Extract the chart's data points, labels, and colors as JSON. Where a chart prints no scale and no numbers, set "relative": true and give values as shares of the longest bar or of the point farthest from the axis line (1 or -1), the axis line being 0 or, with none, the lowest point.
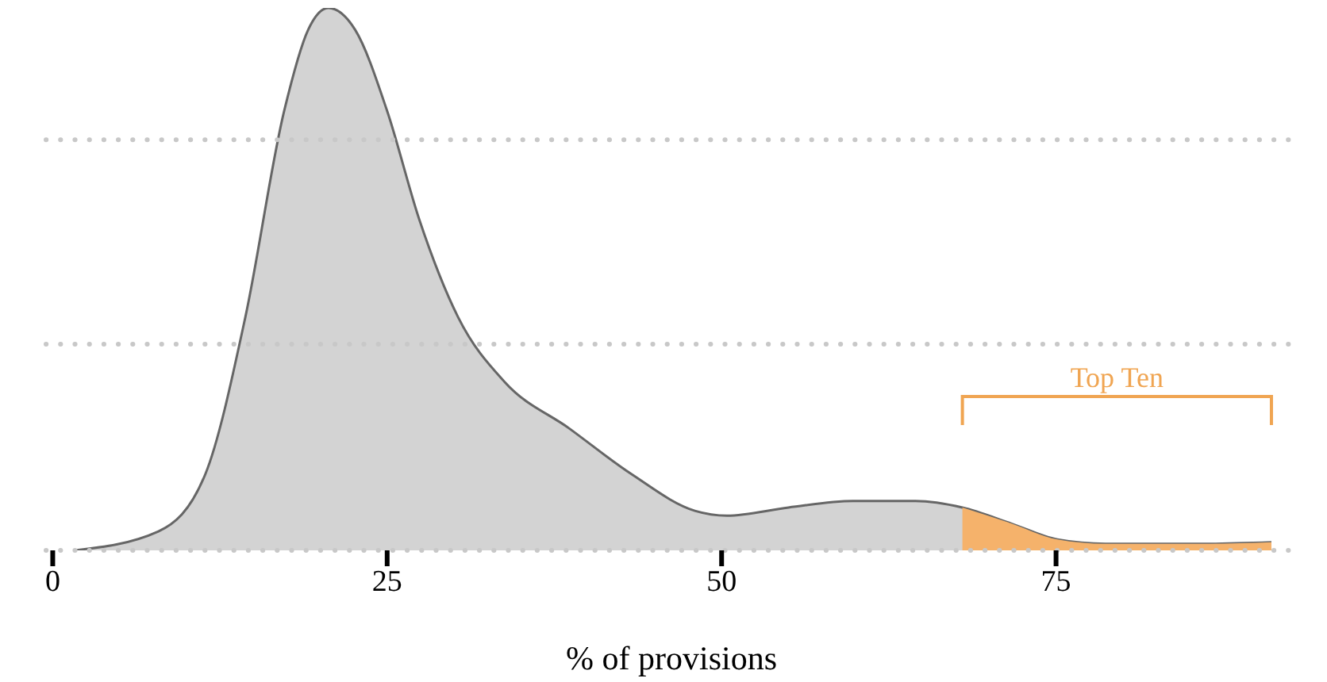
{
  "chart_data": {
    "type": "area",
    "relative": true,
    "xlabel": "% of provisions",
    "xlim": [
      -0.5,
      93
    ],
    "xticks": [
      0,
      25,
      50,
      75
    ],
    "tick_labels": "x",
    "series": [
      {
        "color": "#d3d3d3",
        "x": [
          1.65,
          7.9,
          11.4,
          14.4,
          17.3,
          19.1,
          20.6,
          22.6,
          25,
          27.4,
          30.3,
          33.8,
          38.6,
          43.3,
          48,
          50.4,
          55,
          59.8,
          64.5,
          68,
          71.6,
          75.1,
          78.7,
          85.8,
          91.1
        ],
        "values": [
          0,
          0.035,
          0.14,
          0.43,
          0.81,
          0.96,
          1,
          0.96,
          0.81,
          0.61,
          0.43,
          0.31,
          0.225,
          0.14,
          0.073,
          0.064,
          0.079,
          0.091,
          0.091,
          0.079,
          0.05,
          0.02,
          0.012,
          0.012,
          0.015
        ]
      },
      {
        "color": "#f5b26b",
        "x": [
          68,
          71.6,
          75.1,
          78.7,
          85.8,
          91.1
        ],
        "values": [
          0.079,
          0.05,
          0.02,
          0.012,
          0.012,
          0.015
        ]
      }
    ],
    "annotations": [
      "Top Ten"
    ],
    "ref_lines": [
      {
        "axis": "y",
        "value": 0,
        "color": "#c8c8c8",
        "line_style": "dotted"
      },
      {
        "axis": "y",
        "value": 0.38,
        "color": "#c8c8c8",
        "line_style": "dotted"
      },
      {
        "axis": "y",
        "value": 0.757,
        "color": "#c8c8c8",
        "line_style": "dotted"
      }
    ]
  }
}
